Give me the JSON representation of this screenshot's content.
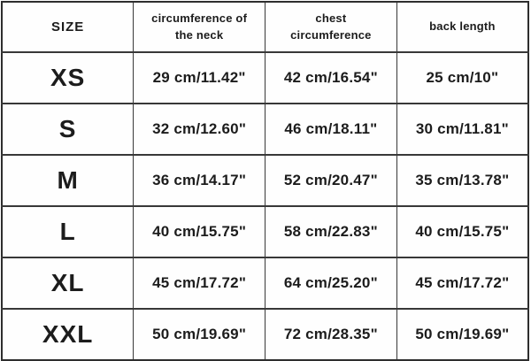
{
  "chart_data": {
    "type": "table",
    "title": "",
    "columns": [
      "SIZE",
      "circumference of the neck",
      "chest circumference",
      "back length"
    ],
    "rows": [
      [
        "XS",
        "29 cm/11.42\"",
        "42 cm/16.54\"",
        "25 cm/10\""
      ],
      [
        "S",
        "32 cm/12.60\"",
        "46 cm/18.11\"",
        "30 cm/11.81\""
      ],
      [
        "M",
        "36 cm/14.17\"",
        "52 cm/20.47\"",
        "35 cm/13.78\""
      ],
      [
        "L",
        "40 cm/15.75\"",
        "58 cm/22.83\"",
        "40 cm/15.75\""
      ],
      [
        "XL",
        "45 cm/17.72\"",
        "64 cm/25.20\"",
        "45 cm/17.72\""
      ],
      [
        "XXL",
        "50 cm/19.69\"",
        "72 cm/28.35\"",
        "50 cm/19.69\""
      ]
    ]
  },
  "colors": {
    "background": "#fefefe",
    "border": "#383838",
    "text": "#1c1c1c"
  }
}
